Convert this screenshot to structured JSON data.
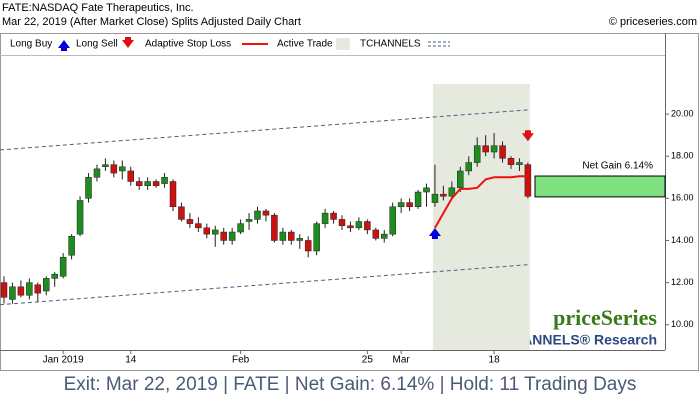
{
  "chart_data": {
    "type": "candlestick",
    "title": "FATE:NASDAQ Fate Therapeutics, Inc.",
    "subtitle": "Mar 22, 2019 (After Market Close)  Splits Adjusted Daily Chart",
    "source": "© priceseries.com",
    "footer": "Exit: Mar 22, 2019 | FATE | Net Gain: 6.14% | Hold: 11 Trading Days",
    "watermark": "priceSeries",
    "watermark_sub": "TCHANNELS® Research",
    "legend": [
      {
        "name": "Long Buy",
        "color": "#0000dd"
      },
      {
        "name": "Long Sell",
        "color": "#dd1111"
      },
      {
        "name": "Adaptive Stop Loss",
        "color": "#ee1111"
      },
      {
        "name": "Active Trade",
        "color": "#e6e9dd"
      },
      {
        "name": "TCHANNELS",
        "color": "#4a6080"
      }
    ],
    "up_color": "#1e8c1e",
    "down_color": "#cc1111",
    "categories": [
      null,
      null,
      null,
      null,
      null,
      null,
      null,
      "Jan 2019",
      null,
      null,
      null,
      null,
      null,
      null,
      null,
      "14",
      null,
      null,
      null,
      null,
      null,
      null,
      null,
      null,
      null,
      null,
      null,
      null,
      "Feb",
      null,
      null,
      null,
      null,
      null,
      null,
      null,
      null,
      null,
      null,
      null,
      null,
      null,
      null,
      "25",
      null,
      null,
      null,
      "Mar",
      null,
      null,
      null,
      null,
      null,
      null,
      null,
      null,
      null,
      null,
      "18",
      null,
      null,
      null,
      null
    ],
    "open": [
      12.0,
      11.2,
      11.8,
      11.4,
      11.9,
      11.6,
      12.2,
      12.3,
      13.3,
      14.3,
      16.0,
      17.0,
      17.5,
      17.6,
      17.3,
      17.3,
      16.8,
      16.6,
      16.8,
      16.7,
      16.8,
      15.6,
      15.0,
      14.8,
      14.6,
      14.3,
      14.4,
      14.0,
      14.4,
      14.9,
      15.0,
      15.4,
      15.2,
      14.0,
      14.4,
      14.0,
      14.0,
      13.5,
      14.8,
      15.3,
      15.0,
      14.7,
      14.6,
      14.9,
      14.5,
      14.1,
      14.3,
      15.6,
      15.8,
      15.6,
      16.3,
      15.8,
      16.2,
      16.1,
      16.5,
      17.3,
      17.7,
      18.5,
      18.2,
      18.5,
      17.9,
      17.6,
      17.6
    ],
    "high": [
      12.3,
      12.0,
      12.1,
      12.2,
      12.0,
      12.3,
      12.5,
      13.4,
      14.3,
      16.1,
      17.2,
      17.6,
      17.9,
      17.8,
      17.8,
      17.5,
      17.0,
      17.0,
      16.9,
      17.2,
      16.9,
      15.8,
      15.3,
      15.1,
      14.8,
      14.7,
      14.6,
      14.6,
      15.0,
      15.3,
      15.6,
      15.5,
      15.3,
      14.6,
      14.5,
      14.3,
      14.2,
      14.9,
      15.5,
      15.4,
      15.2,
      14.9,
      15.1,
      15.0,
      14.6,
      14.5,
      15.8,
      16.0,
      16.0,
      16.4,
      16.7,
      17.6,
      16.6,
      16.8,
      17.5,
      18.0,
      18.9,
      19.0,
      19.1,
      18.7,
      18.0,
      17.9,
      17.7
    ],
    "low": [
      11.0,
      11.0,
      11.3,
      11.2,
      11.1,
      11.4,
      11.8,
      12.2,
      13.1,
      14.2,
      15.8,
      16.8,
      17.3,
      17.0,
      16.9,
      16.6,
      16.4,
      16.4,
      16.5,
      16.5,
      15.4,
      14.9,
      14.6,
      14.4,
      14.1,
      13.7,
      13.8,
      13.8,
      14.3,
      14.5,
      14.8,
      14.9,
      13.9,
      13.8,
      13.8,
      13.6,
      13.2,
      13.3,
      14.6,
      14.8,
      14.5,
      14.4,
      14.5,
      14.3,
      14.0,
      13.9,
      14.2,
      15.3,
      15.4,
      15.5,
      15.6,
      15.6,
      15.9,
      16.0,
      16.3,
      17.1,
      17.5,
      18.0,
      17.9,
      17.7,
      17.4,
      17.3,
      16.0
    ],
    "close": [
      11.3,
      11.8,
      11.4,
      12.0,
      11.5,
      12.2,
      12.4,
      13.2,
      14.2,
      15.9,
      17.0,
      17.4,
      17.6,
      17.2,
      17.5,
      16.8,
      16.6,
      16.8,
      16.6,
      17.0,
      15.6,
      15.0,
      14.8,
      14.6,
      14.3,
      14.5,
      14.0,
      14.4,
      14.8,
      15.0,
      15.4,
      15.2,
      14.0,
      14.4,
      14.0,
      14.1,
      13.5,
      14.8,
      15.3,
      15.0,
      14.7,
      14.6,
      14.9,
      14.5,
      14.1,
      14.3,
      15.6,
      15.8,
      15.6,
      16.3,
      16.5,
      16.2,
      16.1,
      16.5,
      17.3,
      17.7,
      18.5,
      18.2,
      18.5,
      17.9,
      17.6,
      17.7,
      16.1
    ],
    "stop_loss": [
      null,
      null,
      null,
      null,
      null,
      null,
      null,
      null,
      null,
      null,
      null,
      null,
      null,
      null,
      null,
      null,
      null,
      null,
      null,
      null,
      null,
      null,
      null,
      null,
      null,
      null,
      null,
      null,
      null,
      null,
      null,
      null,
      null,
      null,
      null,
      null,
      null,
      null,
      null,
      null,
      null,
      null,
      null,
      null,
      null,
      null,
      null,
      null,
      null,
      null,
      null,
      14.6,
      15.3,
      16.0,
      16.45,
      16.45,
      16.5,
      16.9,
      17.0,
      17.0,
      17.0,
      17.05,
      17.05
    ],
    "long_buy": [
      null,
      null,
      null,
      null,
      null,
      null,
      null,
      null,
      null,
      null,
      null,
      null,
      null,
      null,
      null,
      null,
      null,
      null,
      null,
      null,
      null,
      null,
      null,
      null,
      null,
      null,
      null,
      null,
      null,
      null,
      null,
      null,
      null,
      null,
      null,
      null,
      null,
      null,
      null,
      null,
      null,
      null,
      null,
      null,
      null,
      null,
      null,
      null,
      null,
      null,
      null,
      14.4,
      null,
      null,
      null,
      null,
      null,
      null,
      null,
      null,
      null,
      null,
      null
    ],
    "long_sell": [
      null,
      null,
      null,
      null,
      null,
      null,
      null,
      null,
      null,
      null,
      null,
      null,
      null,
      null,
      null,
      null,
      null,
      null,
      null,
      null,
      null,
      null,
      null,
      null,
      null,
      null,
      null,
      null,
      null,
      null,
      null,
      null,
      null,
      null,
      null,
      null,
      null,
      null,
      null,
      null,
      null,
      null,
      null,
      null,
      null,
      null,
      null,
      null,
      null,
      null,
      null,
      null,
      null,
      null,
      null,
      null,
      null,
      null,
      null,
      null,
      null,
      null,
      18.9
    ],
    "tchannels": {
      "upper": [
        18.3,
        20.2
      ],
      "lower": [
        10.95,
        12.85
      ]
    },
    "net_gain": {
      "label": "Net Gain 6.14%",
      "range": [
        16.07,
        17.06
      ],
      "color": "#7fe07f"
    },
    "ylim": [
      8.8,
      23.85
    ],
    "yticks": [
      {
        "value": 10,
        "label": "10.00"
      },
      {
        "value": 12,
        "label": "12.00"
      },
      {
        "value": 14,
        "label": "14.00"
      },
      {
        "value": 16,
        "label": "16.00"
      },
      {
        "value": 18,
        "label": "18.00"
      },
      {
        "value": 20,
        "label": "20.00"
      }
    ]
  }
}
